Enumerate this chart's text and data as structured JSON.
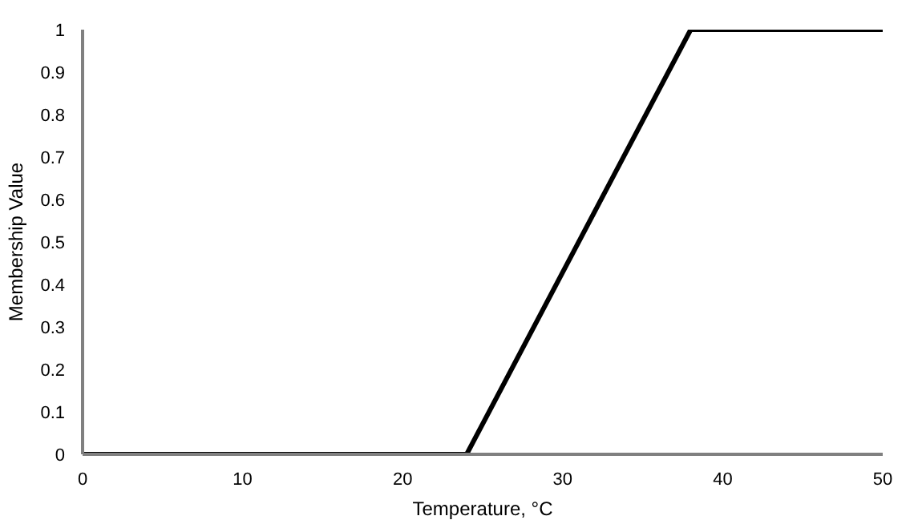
{
  "chart_data": {
    "type": "line",
    "xlabel": "Temperature, °C",
    "ylabel": "Membership Value",
    "x": [
      0,
      24,
      38,
      50
    ],
    "series": [
      {
        "color": "#000000",
        "values": [
          0,
          0,
          1,
          1
        ]
      }
    ],
    "xlim": [
      0,
      50
    ],
    "xticks": [
      0,
      10,
      20,
      30,
      40,
      50
    ],
    "ylim": [
      0,
      1
    ],
    "yticks": [
      0,
      {
        "value": 0.1,
        "label": "0.1"
      },
      {
        "value": 0.2,
        "label": "0.2"
      },
      {
        "value": 0.3,
        "label": "0.3"
      },
      {
        "value": 0.4,
        "label": "0.4"
      },
      {
        "value": 0.5,
        "label": "0.5"
      },
      {
        "value": 0.6,
        "label": "0.6"
      },
      {
        "value": 0.7,
        "label": "0.7"
      },
      {
        "value": 0.8,
        "label": "0.8"
      },
      {
        "value": 0.9,
        "label": "0.9"
      },
      1
    ],
    "grid": false,
    "marker": "none",
    "line_style": "solid"
  }
}
